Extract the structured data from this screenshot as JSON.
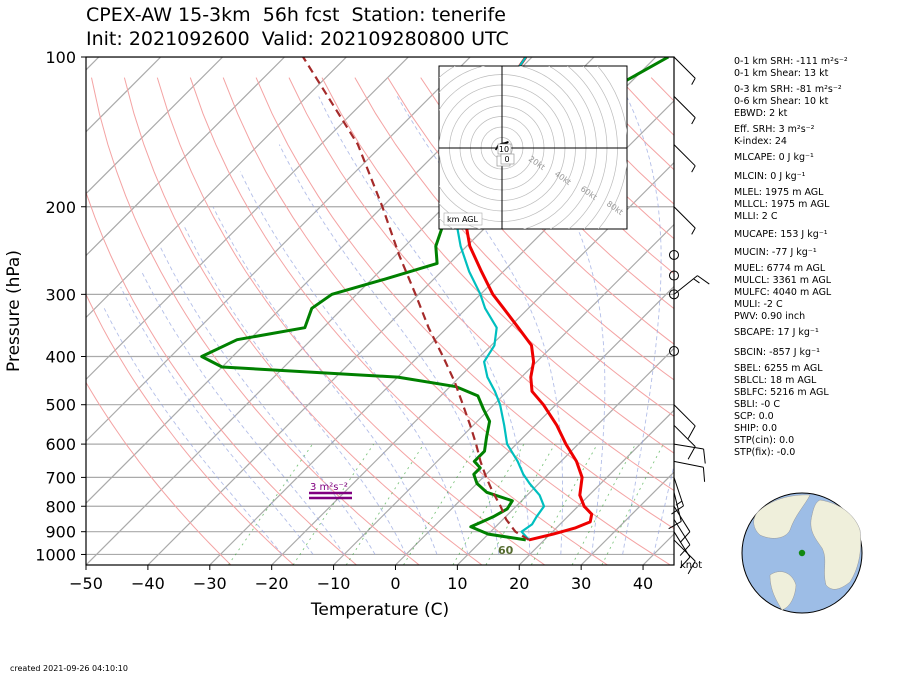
{
  "header": {
    "title_line1": "CPEX-AW 15-3km  56h fcst  Station: tenerife",
    "title_line2": "Init: 2021092600  Valid: 202109280800 UTC"
  },
  "footer": {
    "created": "created 2021-09-26 04:10:10"
  },
  "wind_unit": "knot",
  "hodograph": {
    "ring_labels": [
      "20kt",
      "40kt",
      "60kt",
      "80kt"
    ],
    "height_markers": [
      "10",
      "1",
      "0"
    ],
    "legend": "km AGL"
  },
  "srh_label": "3 m²s⁻²",
  "parcel_label": "60",
  "params": [
    "0-1 km SRH: -111 m²s⁻²",
    "0-1 km Shear: 13 kt",
    "0-3 km SRH: -81 m²s⁻²",
    "0-6 km Shear: 10 kt",
    "EBWD: 2 kt",
    "Eff. SRH: 3 m²s⁻²",
    "K-index: 24",
    "MLCAPE: 0 J kg⁻¹",
    "MLCIN: 0 J kg⁻¹",
    "MLEL: 1975 m AGL",
    "MLLCL: 1975 m AGL",
    "MLLI: 2 C",
    "MUCAPE: 153 J kg⁻¹",
    "MUCIN: -77 J kg⁻¹",
    "MUEL: 6774 m AGL",
    "MULCL: 3361 m AGL",
    "MULFC: 4040 m AGL",
    "MULI: -2 C",
    "PWV: 0.90 inch",
    "SBCAPE: 17 J kg⁻¹",
    "SBCIN: -857 J kg⁻¹",
    "SBEL: 6255 m AGL",
    "SBLCL: 18 m AGL",
    "SBLFC: 5216 m AGL",
    "SBLI: -0 C",
    "SCP: 0.0",
    "SHIP: 0.0",
    "STP(cin): 0.0",
    "STP(fix): -0.0"
  ],
  "chart_data": {
    "type": "line",
    "subtype": "skew-T log-P",
    "xlabel": "Temperature (C)",
    "ylabel": "Pressure (hPa)",
    "x_ticks": [
      -50,
      -40,
      -30,
      -20,
      -10,
      0,
      10,
      20,
      30,
      40
    ],
    "y_ticks": [
      100,
      200,
      300,
      400,
      500,
      600,
      700,
      800,
      900,
      1000
    ],
    "xlim": [
      -50,
      45
    ],
    "ylim": [
      1050,
      100
    ],
    "y_scale": "log",
    "skew": "isotherms slanted 45 degrees",
    "colors": {
      "temperature": "#ee0000",
      "dewpoint": "#008000",
      "virtual_temperature": "#00bfbf",
      "parcel": "#a52a2a",
      "srh_marker": "#800080"
    },
    "series": [
      {
        "id": "temperature",
        "pressure": [
          935,
          910,
          885,
          860,
          830,
          800,
          760,
          700,
          650,
          600,
          550,
          500,
          470,
          440,
          410,
          380,
          350,
          320,
          300,
          270,
          240,
          210,
          180,
          160,
          140,
          120,
          100
        ],
        "values": [
          17.5,
          20.5,
          23,
          24.5,
          23.5,
          21,
          18.5,
          16,
          12.5,
          8,
          3.5,
          -2,
          -6,
          -8.5,
          -10.5,
          -13.5,
          -18.5,
          -24,
          -28,
          -33.5,
          -39.5,
          -45,
          -51,
          -54,
          -57,
          -59,
          -61
        ]
      },
      {
        "id": "dewpoint",
        "pressure": [
          935,
          910,
          880,
          860,
          840,
          810,
          780,
          750,
          720,
          690,
          670,
          650,
          620,
          580,
          540,
          510,
          480,
          460,
          440,
          420,
          400,
          370,
          350,
          320,
          300,
          280,
          260,
          240,
          220,
          200,
          180,
          160,
          140,
          120,
          100
        ],
        "values": [
          17,
          10,
          6,
          7,
          8,
          9,
          8.5,
          3,
          0,
          -2,
          -2,
          -4,
          -4,
          -6,
          -8,
          -11,
          -14,
          -19,
          -30,
          -60,
          -65,
          -62,
          -53,
          -55,
          -54,
          -48,
          -42,
          -45,
          -47,
          -48,
          -47,
          -45,
          -46,
          -43,
          -38
        ]
      },
      {
        "id": "virtual_temperature",
        "pressure": [
          935,
          900,
          870,
          840,
          800,
          760,
          720,
          690,
          650,
          600,
          550,
          500,
          470,
          440,
          410,
          380,
          350,
          320,
          300,
          270,
          240,
          210,
          180,
          160,
          140,
          120,
          100
        ],
        "values": [
          17.5,
          15,
          15.5,
          15,
          14.5,
          12,
          8.5,
          6,
          3,
          -1.5,
          -5,
          -9,
          -12,
          -15.5,
          -18.5,
          -19.5,
          -22,
          -27,
          -30,
          -35.5,
          -41,
          -46.5,
          -51.5,
          -54.5,
          -57,
          -59,
          -61
        ]
      },
      {
        "id": "parcel",
        "pressure": [
          935,
          900,
          850,
          800,
          750,
          700,
          650,
          600,
          550,
          500,
          450,
          400,
          350,
          300,
          250,
          200,
          150,
          100
        ],
        "values": [
          17.5,
          14,
          10.5,
          7.5,
          4,
          0.5,
          -3,
          -6.5,
          -10.5,
          -15,
          -20,
          -26,
          -33,
          -40.5,
          -49.5,
          -60,
          -74,
          -97
        ]
      }
    ],
    "wind_barbs": {
      "pressure": [
        935,
        900,
        850,
        800,
        750,
        700,
        650,
        600,
        550,
        500,
        450,
        400,
        350,
        300,
        250,
        200,
        150,
        120,
        100
      ],
      "u_kt": [
        -6,
        -5,
        -5,
        -5,
        -3,
        -4,
        -10,
        -12,
        -8,
        -6,
        0,
        0,
        0,
        -10,
        0,
        -5,
        -5,
        -5,
        -5
      ],
      "v_kt": [
        6,
        8,
        8,
        8,
        12,
        12,
        2,
        2,
        8,
        6,
        0,
        0,
        0,
        -8,
        0,
        5,
        5,
        5,
        5
      ],
      "calm_circles_hPa": [
        250,
        275,
        300,
        390
      ]
    },
    "hodograph": {
      "u_kt": [
        -6,
        -4,
        -1,
        3,
        6,
        5,
        3,
        1,
        -1,
        -3,
        -2
      ],
      "v_kt": [
        -2,
        2,
        4,
        5,
        6,
        5,
        4,
        3,
        2,
        -1,
        -3
      ]
    }
  }
}
